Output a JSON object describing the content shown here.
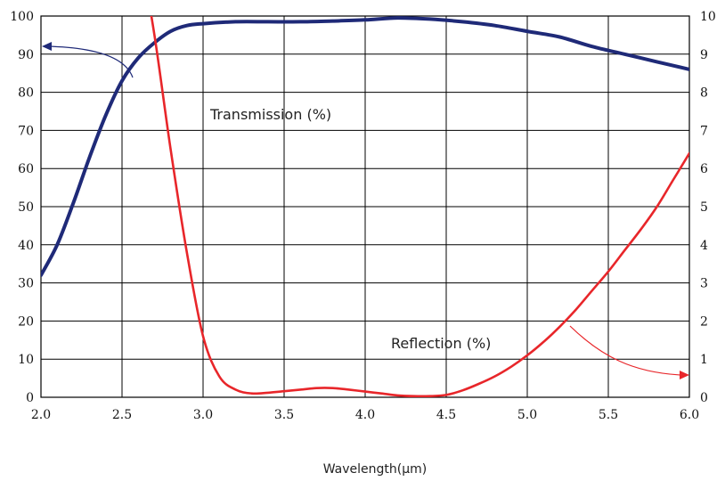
{
  "chart_data": {
    "type": "line",
    "xlabel": "Wavelength(μm)",
    "x_ticks": [
      "2.0",
      "2.5",
      "3.0",
      "3.5",
      "4.0",
      "4.5",
      "5.0",
      "5.5",
      "6.0"
    ],
    "y_left_ticks": [
      "0",
      "10",
      "20",
      "30",
      "40",
      "50",
      "60",
      "70",
      "80",
      "90",
      "100"
    ],
    "y_right_ticks": [
      "0",
      "1",
      "2",
      "3",
      "4",
      "5",
      "6",
      "7",
      "8",
      "9",
      "10"
    ],
    "xlim": [
      2.0,
      6.0
    ],
    "ylim_left": [
      0,
      100
    ],
    "ylim_right": [
      0,
      10
    ],
    "grid": true,
    "series": [
      {
        "name": "Transmission (%)",
        "axis": "left",
        "color": "#1f2a78",
        "x": [
          2.0,
          2.1,
          2.2,
          2.3,
          2.4,
          2.5,
          2.6,
          2.7,
          2.8,
          2.9,
          3.0,
          3.2,
          3.4,
          3.6,
          3.8,
          4.0,
          4.2,
          4.4,
          4.6,
          4.8,
          5.0,
          5.2,
          5.4,
          5.6,
          5.8,
          6.0
        ],
        "y": [
          32,
          40,
          51,
          63,
          74,
          83,
          89,
          93,
          96,
          97.5,
          98,
          98.5,
          98.5,
          98.5,
          98.7,
          99,
          99.5,
          99.2,
          98.5,
          97.5,
          96,
          94.5,
          92,
          90,
          88,
          86
        ]
      },
      {
        "name": "Reflection (%)",
        "axis": "right",
        "color": "#e8262a",
        "x": [
          2.6,
          2.7,
          2.8,
          2.9,
          3.0,
          3.1,
          3.2,
          3.3,
          3.4,
          3.5,
          3.6,
          3.7,
          3.8,
          3.9,
          4.0,
          4.1,
          4.2,
          4.3,
          4.4,
          4.5,
          4.6,
          4.7,
          4.8,
          4.9,
          5.0,
          5.1,
          5.2,
          5.3,
          5.4,
          5.5,
          5.6,
          5.7,
          5.8,
          5.9,
          6.0
        ],
        "y": [
          12,
          9.5,
          6.5,
          3.8,
          1.6,
          0.55,
          0.2,
          0.1,
          0.12,
          0.16,
          0.2,
          0.24,
          0.24,
          0.2,
          0.15,
          0.1,
          0.05,
          0.03,
          0.03,
          0.06,
          0.18,
          0.35,
          0.55,
          0.8,
          1.1,
          1.45,
          1.85,
          2.3,
          2.8,
          3.3,
          3.85,
          4.4,
          5.0,
          5.7,
          6.4
        ]
      }
    ],
    "annotations": [
      {
        "text": "Transmission (%)",
        "series": 0
      },
      {
        "text": "Reflection (%)",
        "series": 1
      }
    ]
  }
}
